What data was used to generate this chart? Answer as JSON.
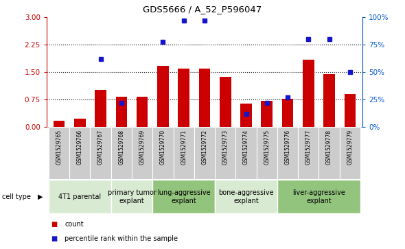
{
  "title": "GDS5666 / A_52_P596047",
  "samples": [
    "GSM1529765",
    "GSM1529766",
    "GSM1529767",
    "GSM1529768",
    "GSM1529769",
    "GSM1529770",
    "GSM1529771",
    "GSM1529772",
    "GSM1529773",
    "GSM1529774",
    "GSM1529775",
    "GSM1529776",
    "GSM1529777",
    "GSM1529778",
    "GSM1529779"
  ],
  "counts": [
    0.18,
    0.22,
    1.02,
    0.83,
    0.83,
    1.68,
    1.6,
    1.6,
    1.38,
    0.65,
    0.72,
    0.78,
    1.85,
    1.45,
    0.9
  ],
  "percentile_ranks": [
    null,
    null,
    62,
    22,
    null,
    78,
    97,
    97,
    null,
    12,
    22,
    27,
    80,
    80,
    50
  ],
  "ylim_left": [
    0,
    3
  ],
  "ylim_right": [
    0,
    100
  ],
  "yticks_left": [
    0,
    0.75,
    1.5,
    2.25,
    3
  ],
  "yticks_right": [
    0,
    25,
    50,
    75,
    100
  ],
  "cell_type_groups": [
    {
      "label": "4T1 parental",
      "start": 0,
      "end": 2,
      "color": "#d9ead3"
    },
    {
      "label": "primary tumor\nexplant",
      "start": 3,
      "end": 4,
      "color": "#d9ead3"
    },
    {
      "label": "lung-aggressive\nexplant",
      "start": 5,
      "end": 7,
      "color": "#93c47d"
    },
    {
      "label": "bone-aggressive\nexplant",
      "start": 8,
      "end": 10,
      "color": "#d9ead3"
    },
    {
      "label": "liver-aggressive\nexplant",
      "start": 11,
      "end": 14,
      "color": "#93c47d"
    }
  ],
  "bar_color": "#cc0000",
  "dot_color": "#1515cc",
  "left_axis_color": "#cc0000",
  "right_axis_color": "#0055cc",
  "bar_width": 0.55,
  "sample_box_color": "#cccccc",
  "border_color": "#aaaaaa"
}
